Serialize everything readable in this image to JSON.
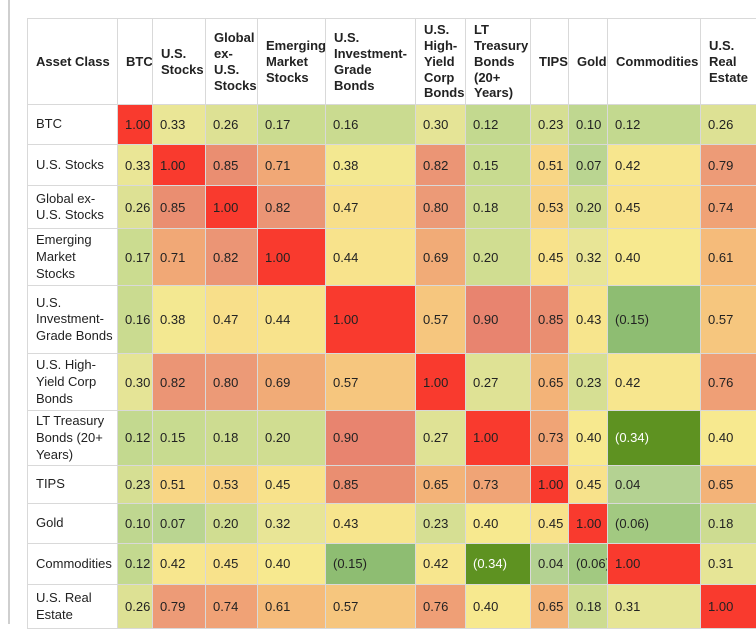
{
  "page": {
    "background": "#ffffff",
    "left_rule_color": "#cfcfcf",
    "grid_line_color": "#d9d9d9",
    "text_color": "#222222"
  },
  "chart_data": {
    "type": "heatmap",
    "corner_label": "Asset Class",
    "categories": [
      "BTC",
      "U.S. Stocks",
      "Global ex-U.S. Stocks",
      "Emerging Market Stocks",
      "U.S. Investment-Grade Bonds",
      "U.S. High-Yield Corp Bonds",
      "LT Treasury Bonds (20+ Years)",
      "TIPS",
      "Gold",
      "Commodities",
      "U.S. Real Estate"
    ],
    "matrix": [
      [
        1.0,
        0.33,
        0.26,
        0.17,
        0.16,
        0.3,
        0.12,
        0.23,
        0.1,
        0.12,
        0.26
      ],
      [
        0.33,
        1.0,
        0.85,
        0.71,
        0.38,
        0.82,
        0.15,
        0.51,
        0.07,
        0.42,
        0.79
      ],
      [
        0.26,
        0.85,
        1.0,
        0.82,
        0.47,
        0.8,
        0.18,
        0.53,
        0.2,
        0.45,
        0.74
      ],
      [
        0.17,
        0.71,
        0.82,
        1.0,
        0.44,
        0.69,
        0.2,
        0.45,
        0.32,
        0.4,
        0.61
      ],
      [
        0.16,
        0.38,
        0.47,
        0.44,
        1.0,
        0.57,
        0.9,
        0.85,
        0.43,
        -0.15,
        0.57
      ],
      [
        0.3,
        0.82,
        0.8,
        0.69,
        0.57,
        1.0,
        0.27,
        0.65,
        0.23,
        0.42,
        0.76
      ],
      [
        0.12,
        0.15,
        0.18,
        0.2,
        0.9,
        0.27,
        1.0,
        0.73,
        0.4,
        -0.34,
        0.4
      ],
      [
        0.23,
        0.51,
        0.53,
        0.45,
        0.85,
        0.65,
        0.73,
        1.0,
        0.45,
        0.04,
        0.65
      ],
      [
        0.1,
        0.07,
        0.2,
        0.32,
        0.43,
        0.23,
        0.4,
        0.45,
        1.0,
        -0.06,
        0.18
      ],
      [
        0.12,
        0.42,
        0.45,
        0.4,
        -0.15,
        0.42,
        -0.34,
        0.04,
        -0.06,
        1.0,
        0.31
      ],
      [
        0.26,
        0.79,
        0.74,
        0.61,
        0.57,
        0.76,
        0.4,
        0.65,
        0.18,
        0.31,
        1.0
      ]
    ],
    "value_format": "two_decimals_negatives_in_parentheses",
    "white_text_threshold": -0.25,
    "colormap": {
      "anchors": [
        {
          "v": -0.34,
          "c": "#5e9221"
        },
        {
          "v": -0.15,
          "c": "#8ebd72"
        },
        {
          "v": -0.06,
          "c": "#a2c981"
        },
        {
          "v": 0.04,
          "c": "#b4d292"
        },
        {
          "v": 0.12,
          "c": "#c3d98f"
        },
        {
          "v": 0.2,
          "c": "#d0dd91"
        },
        {
          "v": 0.27,
          "c": "#dfe295"
        },
        {
          "v": 0.33,
          "c": "#eae696"
        },
        {
          "v": 0.4,
          "c": "#f7e98f"
        },
        {
          "v": 0.47,
          "c": "#f8df8a"
        },
        {
          "v": 0.53,
          "c": "#f8d283"
        },
        {
          "v": 0.6,
          "c": "#f5bd7b"
        },
        {
          "v": 0.67,
          "c": "#f2af77"
        },
        {
          "v": 0.74,
          "c": "#f0a276"
        },
        {
          "v": 0.8,
          "c": "#ec9a77"
        },
        {
          "v": 0.86,
          "c": "#ea8b70"
        },
        {
          "v": 0.9,
          "c": "#e8846f"
        },
        {
          "v": 0.95,
          "c": "#ef6a54"
        },
        {
          "v": 1.0,
          "c": "#f93a2e"
        }
      ]
    }
  }
}
